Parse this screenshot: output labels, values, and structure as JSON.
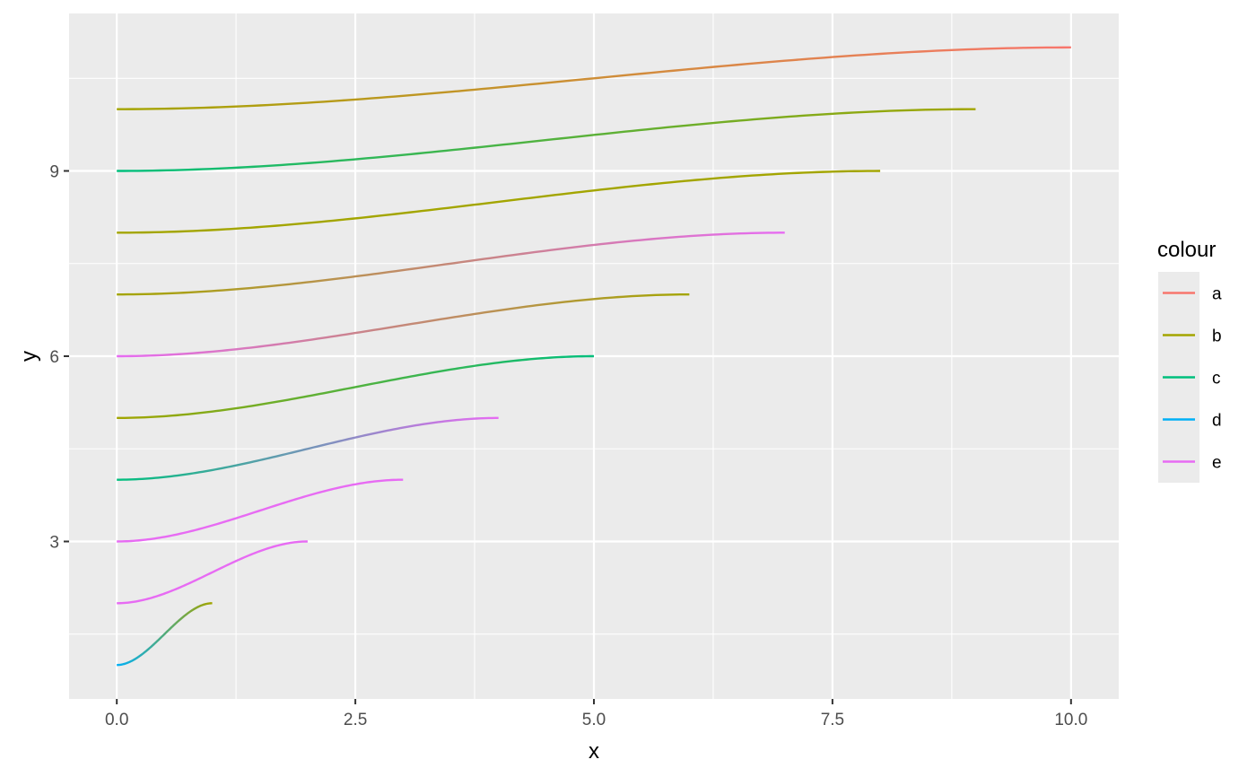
{
  "chart_data": {
    "type": "line",
    "xlabel": "x",
    "ylabel": "y",
    "xlim": [
      -0.5,
      10.5
    ],
    "ylim": [
      0.45,
      11.55
    ],
    "x_ticks": [
      0,
      2.5,
      5,
      7.5,
      10
    ],
    "x_tick_labels": [
      "0.0",
      "2.5",
      "5.0",
      "7.5",
      "10.0"
    ],
    "x_minor": [
      1.25,
      3.75,
      6.25,
      8.75
    ],
    "y_ticks": [
      3,
      6,
      9
    ],
    "y_tick_labels": [
      "3",
      "6",
      "9"
    ],
    "y_minor": [
      1.5,
      4.5,
      7.5,
      10.5
    ],
    "grid": true,
    "panel_background": "#ebebeb",
    "legend": {
      "title": "colour",
      "position": "right",
      "entries": [
        {
          "label": "a",
          "color": "#f8766d"
        },
        {
          "label": "b",
          "color": "#a3a500"
        },
        {
          "label": "c",
          "color": "#00bf7d"
        },
        {
          "label": "d",
          "color": "#00b0f6"
        },
        {
          "label": "e",
          "color": "#e76bf3"
        }
      ]
    },
    "curve_shape": "sigmoid",
    "series": [
      {
        "x_start": 0,
        "x_end": 1,
        "y_start": 1,
        "y_end": 2,
        "color_start": "#00b0f6",
        "color_end": "#a3a500"
      },
      {
        "x_start": 0,
        "x_end": 2,
        "y_start": 2,
        "y_end": 3,
        "color_start": "#e76bf3",
        "color_end": "#e76bf3"
      },
      {
        "x_start": 0,
        "x_end": 3,
        "y_start": 3,
        "y_end": 4,
        "color_start": "#e76bf3",
        "color_end": "#e76bf3"
      },
      {
        "x_start": 0,
        "x_end": 4,
        "y_start": 4,
        "y_end": 5,
        "color_start": "#00bf7d",
        "color_end": "#e76bf3"
      },
      {
        "x_start": 0,
        "x_end": 5,
        "y_start": 5,
        "y_end": 6,
        "color_start": "#a3a500",
        "color_end": "#00bf7d"
      },
      {
        "x_start": 0,
        "x_end": 6,
        "y_start": 6,
        "y_end": 7,
        "color_start": "#e76bf3",
        "color_end": "#a3a500"
      },
      {
        "x_start": 0,
        "x_end": 7,
        "y_start": 7,
        "y_end": 8,
        "color_start": "#a3a500",
        "color_end": "#e76bf3"
      },
      {
        "x_start": 0,
        "x_end": 8,
        "y_start": 8,
        "y_end": 9,
        "color_start": "#a3a500",
        "color_end": "#a3a500"
      },
      {
        "x_start": 0,
        "x_end": 9,
        "y_start": 9,
        "y_end": 10,
        "color_start": "#00bf7d",
        "color_end": "#a3a500"
      },
      {
        "x_start": 0,
        "x_end": 10,
        "y_start": 10,
        "y_end": 11,
        "color_start": "#a3a500",
        "color_end": "#f8766d"
      }
    ]
  }
}
